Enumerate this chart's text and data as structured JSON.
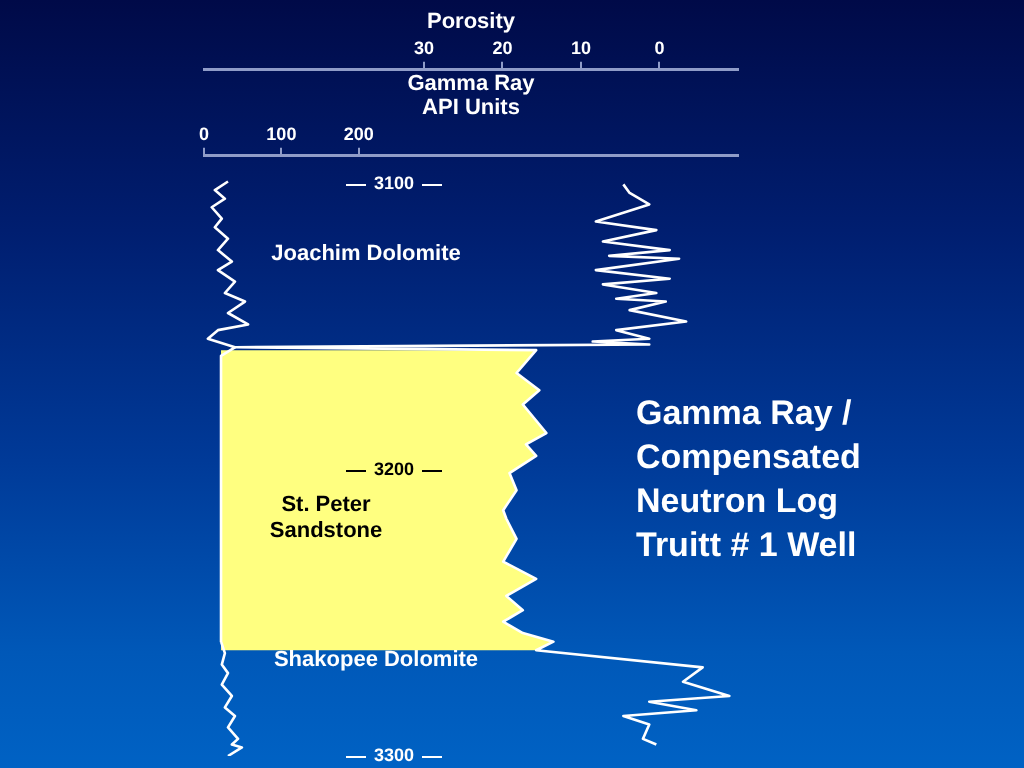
{
  "chart_data": {
    "type": "line",
    "title": "Gamma Ray / Compensated Neutron Log Truitt # 1 Well",
    "xlabel": "Gamma Ray\nAPI Units",
    "x2label": "Porosity",
    "xlim": [
      0,
      690
    ],
    "xticks": [
      0,
      100,
      200
    ],
    "x2lim": [
      58,
      -10
    ],
    "x2ticks": [
      30,
      20,
      10,
      0
    ],
    "ylim": [
      3300,
      3090
    ],
    "yticks": [
      3100,
      3200,
      3300
    ],
    "marker": "none",
    "line_style": "solid",
    "grid": false,
    "legend": false,
    "series": [
      {
        "color": "#ffffff",
        "x": [
          31,
          14,
          27,
          10,
          23,
          14,
          31,
          18,
          36,
          18,
          40,
          27,
          53,
          31,
          57,
          18,
          5,
          40,
          22,
          22,
          27,
          23,
          31,
          23,
          36,
          27,
          40,
          31,
          44,
          36,
          49,
          31
        ],
        "values": [
          3099,
          3102,
          3105,
          3108,
          3112,
          3115,
          3119,
          3123,
          3127,
          3130,
          3134,
          3138,
          3141,
          3145,
          3149,
          3151,
          3154,
          3157,
          3160,
          3260,
          3264,
          3268,
          3271,
          3275,
          3279,
          3283,
          3286,
          3290,
          3294,
          3296,
          3297,
          3300
        ]
      },
      {
        "axis": "x2",
        "color": "#ffffff",
        "x": [
          4.6,
          3.8,
          1.3,
          8.1,
          0.4,
          7.2,
          -1.3,
          6.4,
          -2.5,
          8.1,
          -1.3,
          7.2,
          0.4,
          5.5,
          -0.8,
          3.8,
          -3.4,
          5.5,
          1.3,
          8.5,
          1.3,
          54,
          15.7,
          18.2,
          15.3,
          17.4,
          14.4,
          17,
          15.7,
          19.1,
          18.2,
          19.9,
          19.5,
          18.2,
          19.9,
          15.7,
          19.5,
          17.4,
          19.9,
          17.4,
          13.5,
          15.7,
          -5.5,
          -3,
          -8.9,
          1.3,
          -4.7,
          4.6,
          1.3,
          2.1,
          0.4
        ],
        "values": [
          3100,
          3103,
          3107,
          3113,
          3116,
          3120,
          3123,
          3125,
          3126,
          3130,
          3133,
          3135,
          3138,
          3140,
          3141,
          3144,
          3148,
          3151,
          3154,
          3155,
          3156,
          3157,
          3158,
          3166,
          3172,
          3177,
          3187,
          3191,
          3195,
          3201,
          3207,
          3214,
          3217,
          3224,
          3232,
          3238,
          3244,
          3249,
          3253,
          3257,
          3260,
          3263,
          3269,
          3274,
          3279,
          3281,
          3284,
          3286,
          3289,
          3294,
          3296
        ]
      }
    ],
    "bands": [
      {
        "axis": "y",
        "from": 3158,
        "to": 3263,
        "color": "#ffff80"
      }
    ],
    "annotations": [
      "Joachim Dolomite",
      "St. Peter\nSandstone",
      "Shakopee Dolomite"
    ]
  }
}
